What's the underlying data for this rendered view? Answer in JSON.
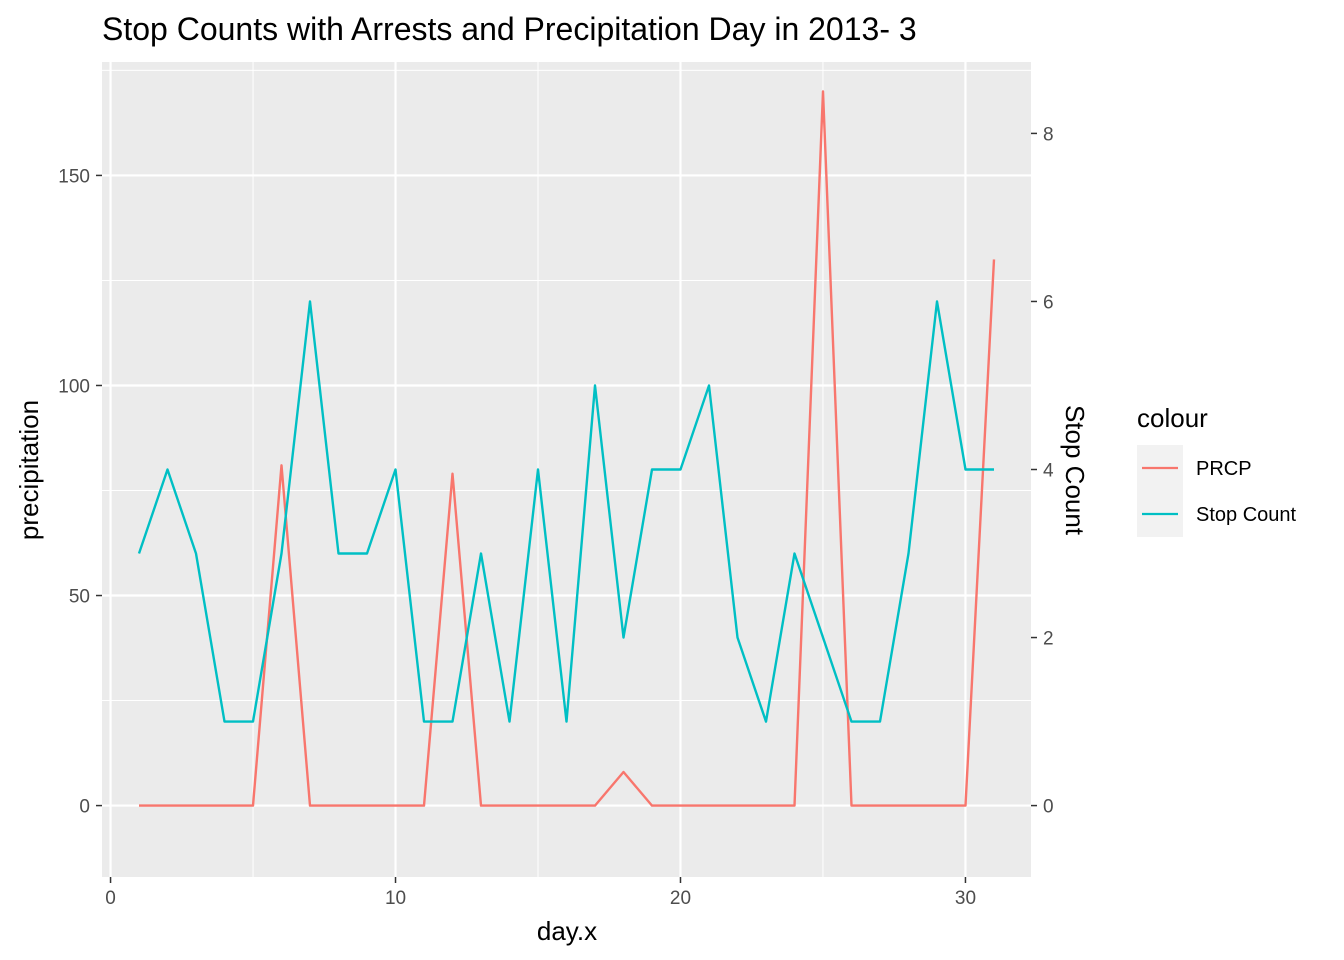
{
  "chart_data": {
    "type": "line",
    "title": "Stop Counts with Arrests and Precipitation Day in 2013- 3",
    "xlabel": "day.x",
    "ylabel": "precipitation",
    "ylabel_right": "Stop Count",
    "xlim": [
      -0.3,
      32.3
    ],
    "ylim": [
      -17,
      177
    ],
    "ylim_right": [
      -0.85,
      8.85
    ],
    "x_ticks": [
      0,
      10,
      20,
      30
    ],
    "y_ticks": [
      0,
      50,
      100,
      150
    ],
    "y_ticks_right": [
      0,
      2,
      4,
      6,
      8
    ],
    "grid": true,
    "legend": {
      "title": "colour",
      "position": "right",
      "items": [
        "PRCP",
        "Stop Count"
      ]
    },
    "series": [
      {
        "name": "PRCP",
        "axis": "left",
        "color": "#F8766D",
        "x": [
          1,
          2,
          3,
          4,
          5,
          6,
          7,
          8,
          9,
          10,
          11,
          12,
          13,
          14,
          15,
          16,
          17,
          18,
          19,
          20,
          21,
          22,
          23,
          24,
          25,
          26,
          27,
          28,
          29,
          30,
          31
        ],
        "values": [
          0,
          0,
          0,
          0,
          0,
          81,
          0,
          0,
          0,
          0,
          0,
          79,
          0,
          0,
          0,
          0,
          0,
          8,
          0,
          0,
          0,
          0,
          0,
          0,
          170,
          0,
          0,
          0,
          0,
          0,
          130
        ]
      },
      {
        "name": "Stop Count",
        "axis": "right",
        "color": "#00BFC4",
        "x": [
          1,
          2,
          3,
          4,
          5,
          6,
          7,
          8,
          9,
          10,
          11,
          12,
          13,
          14,
          15,
          16,
          17,
          18,
          19,
          20,
          21,
          22,
          23,
          24,
          25,
          26,
          27,
          28,
          29,
          30,
          31
        ],
        "values": [
          3,
          4,
          3,
          1,
          1,
          3,
          6,
          3,
          3,
          4,
          1,
          1,
          3,
          1,
          4,
          1,
          5,
          2,
          4,
          4,
          5,
          2,
          1,
          3,
          2,
          1,
          1,
          3,
          6,
          4,
          4
        ]
      }
    ]
  }
}
